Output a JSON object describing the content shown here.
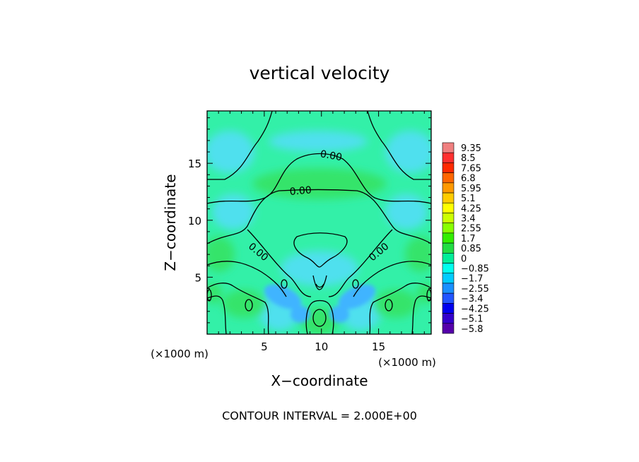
{
  "chart_data": {
    "type": "heatmap",
    "title": "vertical velocity",
    "xlabel": "X−coordinate",
    "ylabel": "Z−coordinate",
    "x_unit_left": "(×1000 m)",
    "x_unit_right": "(×1000 m)",
    "xlim": [
      0,
      19.6
    ],
    "ylim": [
      0,
      19.6
    ],
    "x_ticks": [
      5,
      10,
      15
    ],
    "x_tick_labels": [
      "5",
      "10",
      "15"
    ],
    "y_ticks": [
      5,
      10,
      15
    ],
    "y_tick_labels": [
      "5",
      "10",
      "15"
    ],
    "contour_interval_label": "CONTOUR INTERVAL = 2.000E+00",
    "contour_labels": [
      {
        "text": "0.00",
        "x": 10.8,
        "z": 15.4
      },
      {
        "text": "0.00",
        "x": 8.2,
        "z": 12.3
      },
      {
        "text": "0.00",
        "x": 4.3,
        "z": 7.0
      },
      {
        "text": "0.00",
        "x": 15.2,
        "z": 7.0
      }
    ],
    "colorbar": {
      "labels": [
        "9.35",
        "8.5",
        "7.65",
        "6.8",
        "5.95",
        "5.1",
        "4.25",
        "3.4",
        "2.55",
        "1.7",
        "0.85",
        "0",
        "−0.85",
        "−1.7",
        "−2.55",
        "−3.4",
        "−4.25",
        "−5.1",
        "−5.8"
      ],
      "colors": [
        "#f08080",
        "#ff3030",
        "#ff2a00",
        "#ff6600",
        "#ff9900",
        "#ffcc00",
        "#ffff00",
        "#ccff00",
        "#88ff00",
        "#33ee00",
        "#22dd44",
        "#00ee99",
        "#00ffee",
        "#00ccff",
        "#1a90ff",
        "#2255ff",
        "#0000ee",
        "#3300cc",
        "#5500aa"
      ]
    },
    "colors": {
      "background_field": "#33f0a8",
      "updraft": "#36e46a",
      "downdraft": "#40b4ff",
      "downdraft_light": "#4fe0ee"
    }
  }
}
